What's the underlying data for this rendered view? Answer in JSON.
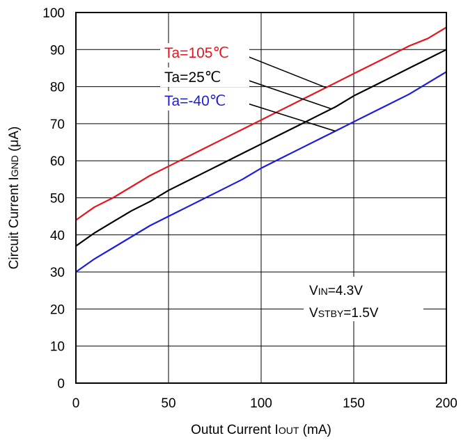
{
  "chart_data": {
    "type": "line",
    "xlabel": "Outut Current IOUT (mA)",
    "xlabel_parts": [
      "Outut Current I",
      "OUT",
      " (mA)"
    ],
    "ylabel": "Circuit Current IGND (μA)",
    "ylabel_parts": [
      "Circuit Current I",
      "GND",
      " (μA)"
    ],
    "xlim": [
      0,
      200
    ],
    "ylim": [
      0,
      100
    ],
    "xticks": [
      0,
      50,
      100,
      150,
      200
    ],
    "yticks": [
      0,
      10,
      20,
      30,
      40,
      50,
      60,
      70,
      80,
      90,
      100
    ],
    "grid": true,
    "series": [
      {
        "name": "Ta=105℃",
        "color": "#e8141c",
        "x": [
          0,
          10,
          20,
          30,
          40,
          50,
          60,
          70,
          80,
          90,
          100,
          110,
          120,
          130,
          140,
          150,
          160,
          170,
          180,
          190,
          200
        ],
        "y": [
          44,
          47.5,
          50,
          53,
          56,
          58.5,
          61,
          63.5,
          66,
          68.5,
          71,
          73.5,
          76,
          78.5,
          81,
          83.5,
          86,
          88.5,
          91,
          93,
          96
        ]
      },
      {
        "name": "Ta=25℃",
        "color": "#000000",
        "x": [
          0,
          10,
          20,
          30,
          40,
          50,
          60,
          70,
          80,
          90,
          100,
          110,
          120,
          130,
          140,
          150,
          160,
          170,
          180,
          190,
          200
        ],
        "y": [
          37,
          40.5,
          43.5,
          46.5,
          49,
          52,
          54.5,
          57,
          59.5,
          62,
          64.5,
          67,
          69.5,
          72,
          74.5,
          77.5,
          80,
          82.5,
          85,
          87.5,
          90
        ]
      },
      {
        "name": "Ta=-40℃",
        "color": "#1c1ce0",
        "x": [
          0,
          10,
          20,
          30,
          40,
          50,
          60,
          70,
          80,
          90,
          100,
          110,
          120,
          130,
          140,
          150,
          160,
          170,
          180,
          190,
          200
        ],
        "y": [
          30,
          33.5,
          36.5,
          39.5,
          42.5,
          45,
          47.5,
          50,
          52.5,
          55,
          58,
          60.5,
          63,
          65.5,
          68,
          70.5,
          73,
          75.5,
          78,
          81,
          84
        ]
      }
    ],
    "annotations": [
      {
        "parts": [
          "V",
          "IN",
          "=4.3V"
        ]
      },
      {
        "parts": [
          "V",
          "STBY",
          "=1.5V"
        ]
      }
    ]
  }
}
